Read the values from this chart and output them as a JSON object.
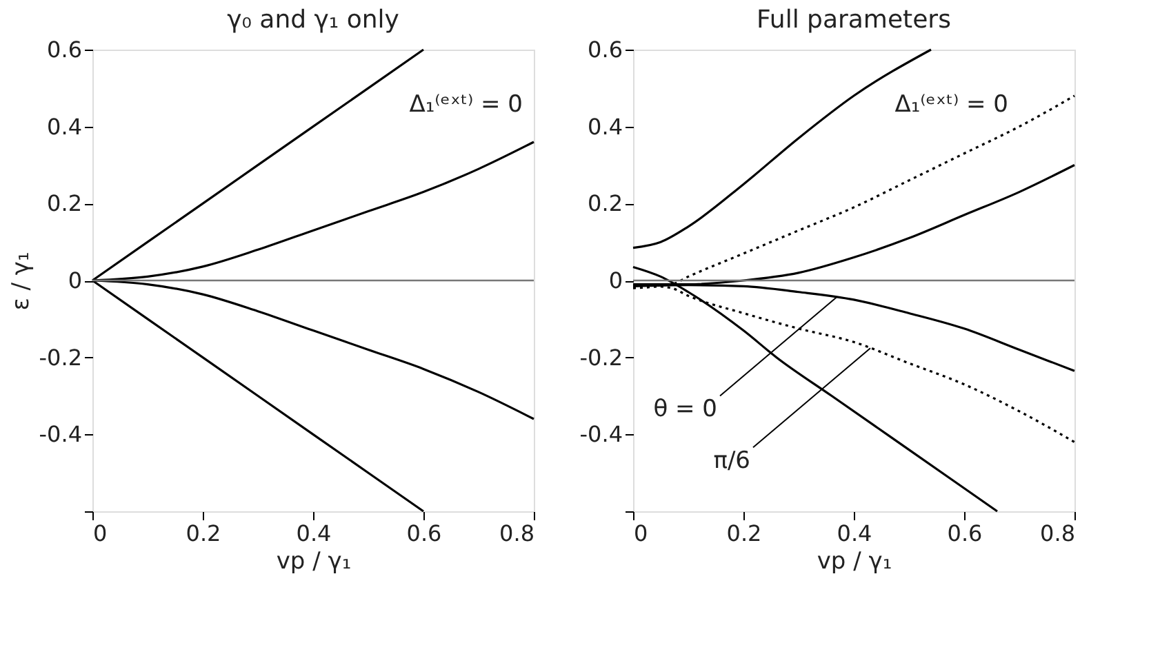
{
  "chart_data": [
    {
      "type": "line",
      "title": "γ₀ and γ₁ only",
      "xlabel": "vp / γ₁",
      "ylabel": "ε / γ₁",
      "xlim": [
        0,
        0.8
      ],
      "ylim": [
        -0.6,
        0.6
      ],
      "xticks": [
        0,
        0.2,
        0.4,
        0.6,
        0.8
      ],
      "yticks": [
        {
          "value": -0.6,
          "label": null
        },
        -0.4,
        -0.2,
        0,
        0.2,
        0.4,
        0.6
      ],
      "grid": false,
      "marker": "none",
      "series": [
        {
          "color": "#000000",
          "line_style": "solid",
          "x": [
            0,
            0.2,
            0.4,
            0.6
          ],
          "values": [
            0,
            0.2,
            0.4,
            0.6
          ]
        },
        {
          "color": "#000000",
          "line_style": "solid",
          "x": [
            0,
            0.1,
            0.2,
            0.3,
            0.4,
            0.5,
            0.6,
            0.7,
            0.8
          ],
          "values": [
            0,
            0.01,
            0.036,
            0.08,
            0.13,
            0.18,
            0.23,
            0.29,
            0.36
          ]
        },
        {
          "color": "#000000",
          "line_style": "solid",
          "x": [
            0,
            0.1,
            0.2,
            0.3,
            0.4,
            0.5,
            0.6,
            0.7,
            0.8
          ],
          "values": [
            0,
            -0.01,
            -0.036,
            -0.08,
            -0.13,
            -0.18,
            -0.23,
            -0.29,
            -0.36
          ]
        },
        {
          "color": "#000000",
          "line_style": "solid",
          "x": [
            0,
            0.2,
            0.4,
            0.6
          ],
          "values": [
            0,
            -0.2,
            -0.4,
            -0.6
          ]
        }
      ],
      "ref_lines": [
        {
          "axis": "y",
          "value": 0,
          "color": "#777777"
        }
      ],
      "annotations": [
        "Δ₁⁽ᵉˣᵗ⁾ = 0"
      ]
    },
    {
      "type": "line",
      "title": "Full parameters",
      "xlabel": "vp / γ₁",
      "xlim": [
        0,
        0.8
      ],
      "ylim": [
        -0.6,
        0.6
      ],
      "xticks": [
        0,
        0.2,
        0.4,
        0.6,
        0.8
      ],
      "yticks": [
        {
          "value": -0.6,
          "label": null
        },
        -0.4,
        -0.2,
        0,
        0.2,
        0.4,
        0.6
      ],
      "grid": false,
      "marker": "none",
      "series": [
        {
          "color": "#000000",
          "line_style": "solid",
          "x": [
            0,
            0.05,
            0.1,
            0.2,
            0.3,
            0.4,
            0.54
          ],
          "values": [
            0.085,
            0.1,
            0.14,
            0.25,
            0.37,
            0.48,
            0.6
          ]
        },
        {
          "color": "#000000",
          "line_style": "dotted",
          "x": [
            0,
            0.07,
            0.1,
            0.2,
            0.3,
            0.4,
            0.5,
            0.6,
            0.7,
            0.8
          ],
          "values": [
            -0.02,
            -0.01,
            0.01,
            0.07,
            0.13,
            0.19,
            0.26,
            0.33,
            0.4,
            0.48
          ]
        },
        {
          "color": "#000000",
          "line_style": "solid",
          "x": [
            0,
            0.1,
            0.2,
            0.3,
            0.4,
            0.5,
            0.6,
            0.7,
            0.8
          ],
          "values": [
            -0.01,
            -0.01,
            0,
            0.02,
            0.06,
            0.11,
            0.17,
            0.23,
            0.3
          ]
        },
        {
          "color": "#000000",
          "line_style": "solid",
          "x": [
            0,
            0.05,
            0.1,
            0.2,
            0.26,
            0.36,
            0.5,
            0.66
          ],
          "values": [
            0.035,
            0.01,
            -0.03,
            -0.13,
            -0.2,
            -0.3,
            -0.44,
            -0.6
          ]
        },
        {
          "color": "#000000",
          "line_style": "solid",
          "x": [
            0,
            0.1,
            0.2,
            0.3,
            0.4,
            0.5,
            0.6,
            0.7,
            0.8
          ],
          "values": [
            -0.015,
            -0.012,
            -0.015,
            -0.03,
            -0.05,
            -0.085,
            -0.125,
            -0.18,
            -0.235
          ]
        },
        {
          "color": "#000000",
          "line_style": "dotted",
          "x": [
            0,
            0.07,
            0.1,
            0.2,
            0.3,
            0.4,
            0.5,
            0.6,
            0.7,
            0.8
          ],
          "values": [
            -0.01,
            -0.02,
            -0.04,
            -0.085,
            -0.125,
            -0.16,
            -0.215,
            -0.27,
            -0.34,
            -0.42
          ]
        }
      ],
      "ref_lines": [
        {
          "axis": "y",
          "value": 0,
          "color": "#777777"
        }
      ],
      "annotations": [
        "Δ₁⁽ᵉˣᵗ⁾ = 0",
        {
          "text": "θ = 0",
          "x": 0.37,
          "y": -0.042
        },
        {
          "text": "π/6",
          "x": 0.43,
          "y": -0.176
        }
      ]
    }
  ]
}
